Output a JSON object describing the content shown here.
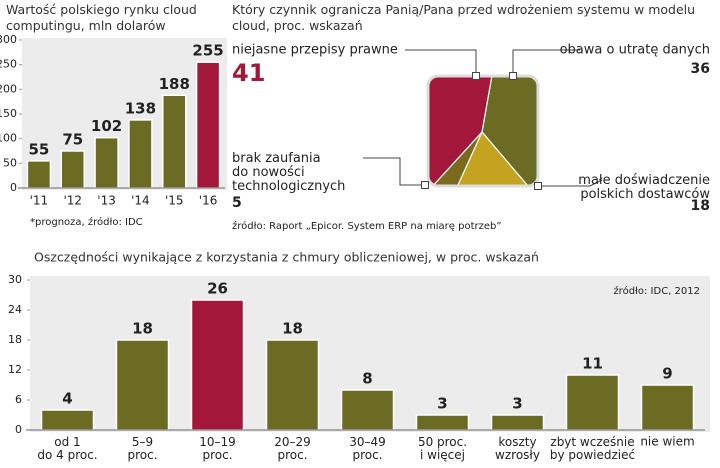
{
  "chart_data": [
    {
      "type": "bar",
      "title": "Wartość polskiego rynku cloud computingu, mln dolarów",
      "categories": [
        "'11",
        "'12",
        "'13",
        "'14",
        "'15",
        "'16"
      ],
      "values": [
        55,
        75,
        102,
        138,
        188,
        255
      ],
      "colors": [
        "#6b6b24",
        "#6b6b24",
        "#6b6b24",
        "#6b6b24",
        "#6b6b24",
        "#a3173a"
      ],
      "ylim": [
        0,
        300
      ],
      "yticks": [
        0,
        50,
        100,
        150,
        200,
        250,
        300
      ],
      "grid": false,
      "note": "*prognoza, źródło: IDC"
    },
    {
      "type": "pie",
      "title": "Który czynnik ogranicza Panią/Pana przed wdrożeniem systemu w modelu cloud, proc. wskazań",
      "categories": [
        "niejasne przepisy prawne",
        "obawa o utratę danych",
        "brak zaufania\ndo nowości\ntechnologicznych",
        "małe doświadczenie\npolskich dostawców"
      ],
      "values": [
        41,
        36,
        5,
        18
      ],
      "colors": [
        "#a3173a",
        "#6b6b24",
        "#7a6a1c",
        "#c4a321"
      ],
      "note": "źródło: Raport „Epicor. System ERP na miarę potrzeb”"
    },
    {
      "type": "bar",
      "title": "Oszczędności wynikające z korzystania z chmury obliczeniowej, w proc. wskazań",
      "categories": [
        "od 1\ndo 4 proc.",
        "5–9\nproc.",
        "10–19\nproc.",
        "20–29\nproc.",
        "30–49\nproc.",
        "50 proc.\ni więcej",
        "koszty\nwzrosły",
        "zbyt wcześnie\nby powiedzieć",
        "nie wiem"
      ],
      "values": [
        4,
        18,
        26,
        18,
        8,
        3,
        3,
        11,
        9
      ],
      "colors": [
        "#6b6b24",
        "#6b6b24",
        "#a3173a",
        "#6b6b24",
        "#6b6b24",
        "#6b6b24",
        "#6b6b24",
        "#6b6b24",
        "#6b6b24"
      ],
      "ylim": [
        0,
        30
      ],
      "yticks": [
        0,
        6,
        12,
        18,
        24,
        30
      ],
      "grid": false,
      "note": "źródło: IDC, 2012"
    }
  ]
}
